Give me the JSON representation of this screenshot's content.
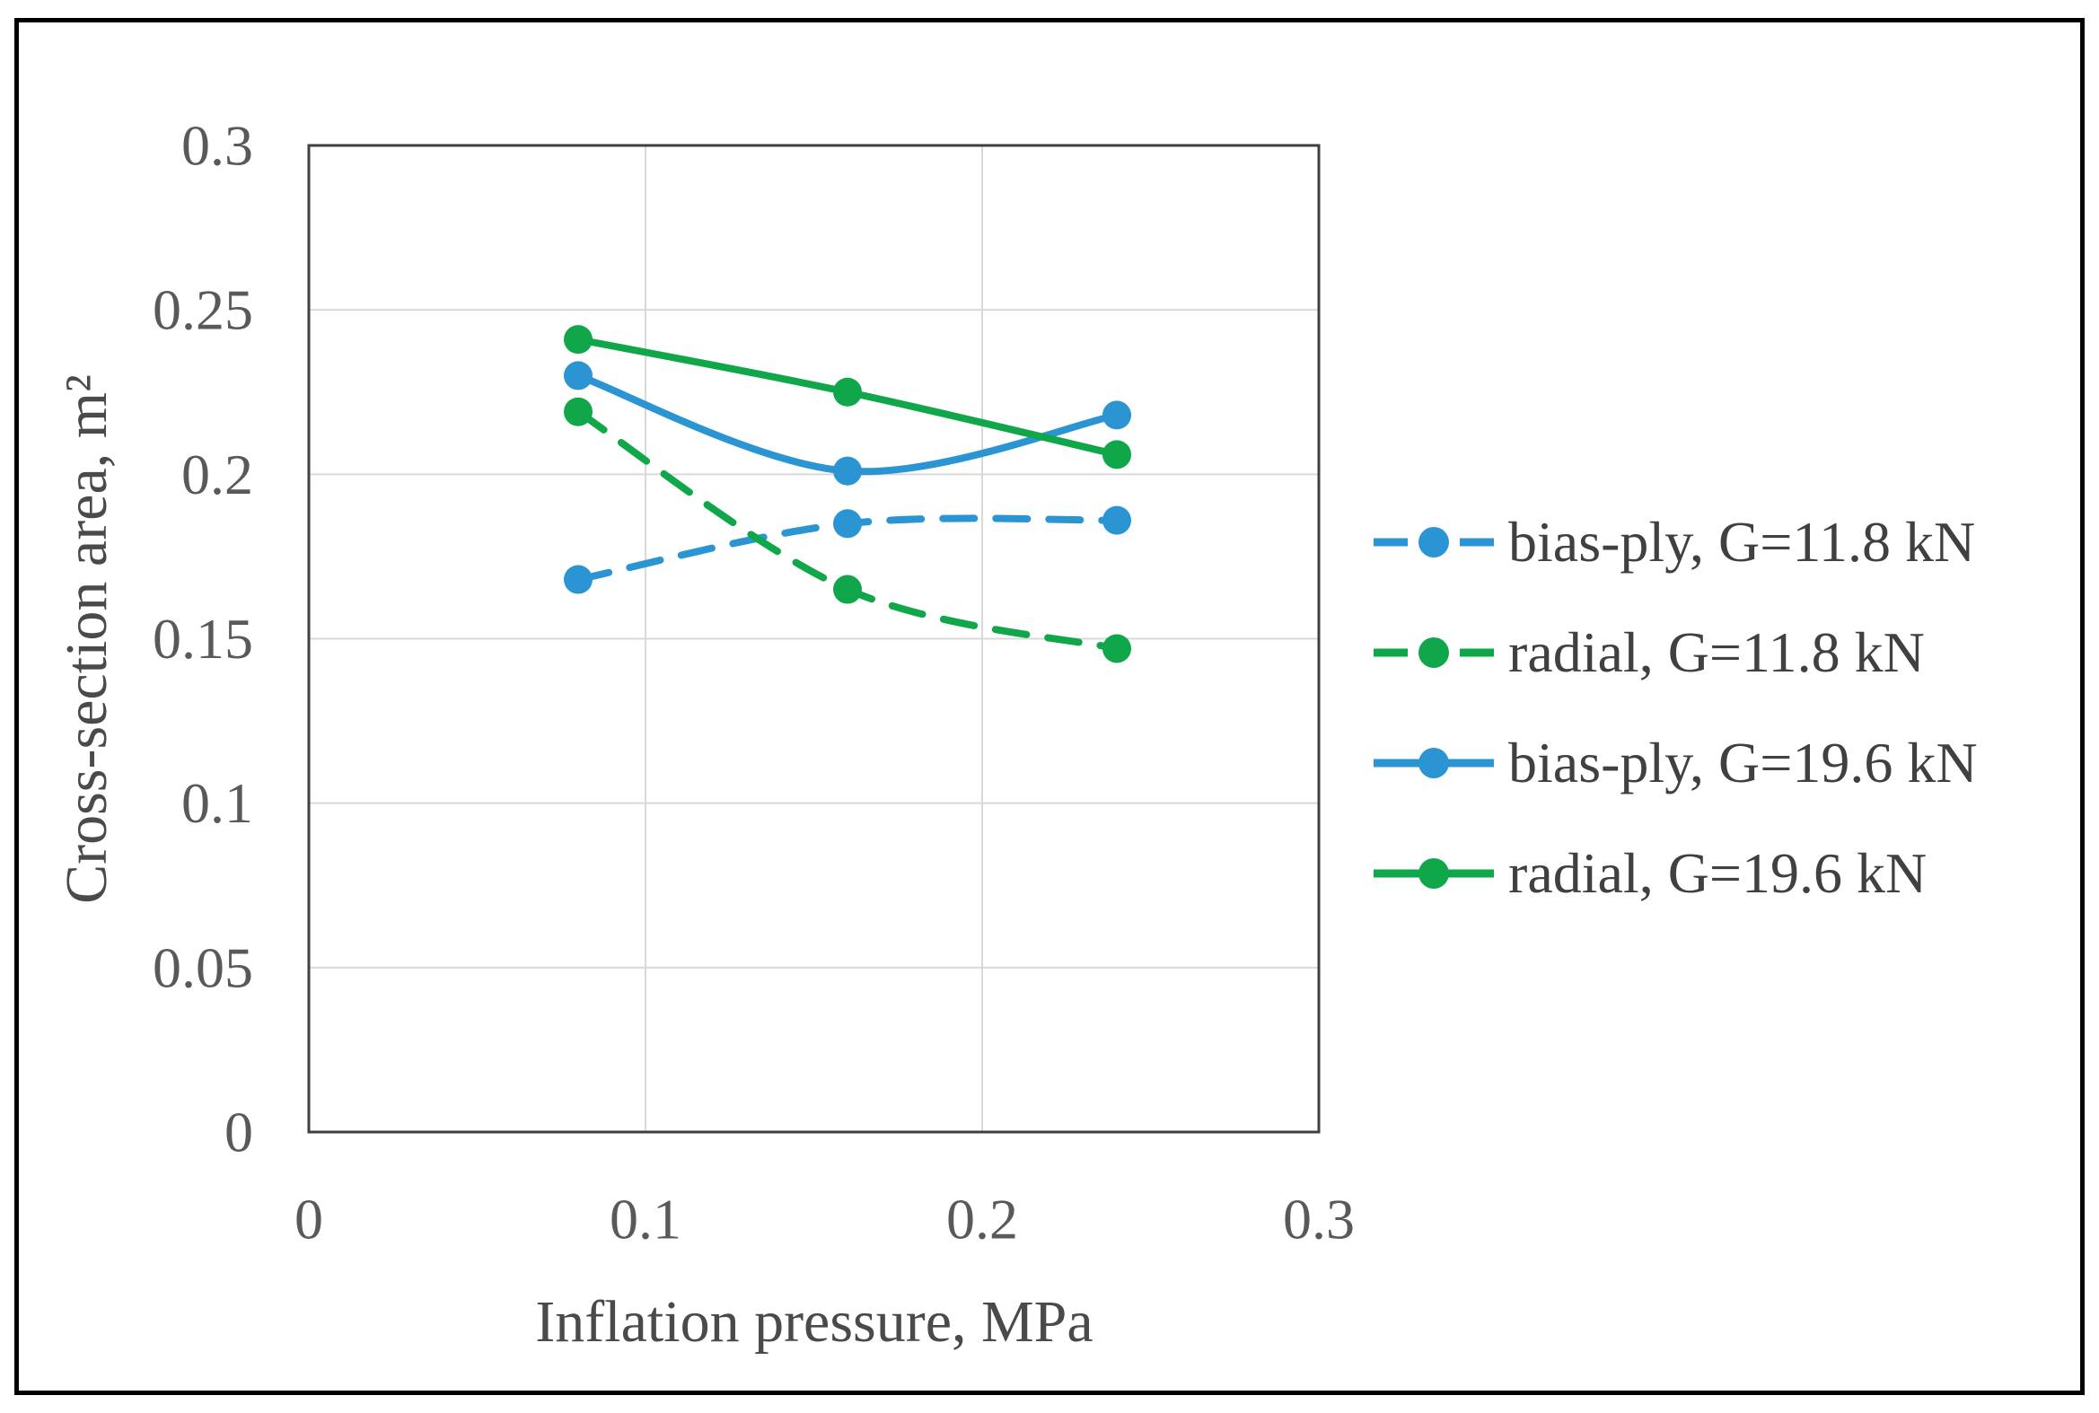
{
  "figure": {
    "background": "#FFFFFF",
    "frame_color": "#000000"
  },
  "chart_data": {
    "type": "line",
    "title": "",
    "xlabel": "Inflation pressure, MPa",
    "ylabel": "Cross-section area, m²",
    "xlim": [
      0,
      0.3
    ],
    "ylim": [
      0,
      0.3
    ],
    "x_tick_labels": [
      "0",
      "0.1",
      "0.2",
      "0.3"
    ],
    "x_tick_values": [
      0,
      0.1,
      0.2,
      0.3
    ],
    "y_tick_labels": [
      "0",
      "0.05",
      "0.1",
      "0.15",
      "0.2",
      "0.25",
      "0.3"
    ],
    "y_tick_values": [
      0,
      0.05,
      0.1,
      0.15,
      0.2,
      0.25,
      0.3
    ],
    "grid": true,
    "legend_position": "right",
    "x": [
      0.08,
      0.16,
      0.24
    ],
    "series": [
      {
        "name": "bias-ply, G=11.8 kN",
        "color": "#2B95D3",
        "style": "dashed",
        "marker": "circle",
        "values": [
          0.168,
          0.185,
          0.186
        ]
      },
      {
        "name": "radial, G=11.8 kN",
        "color": "#10A74A",
        "style": "dashed",
        "marker": "circle",
        "values": [
          0.219,
          0.165,
          0.147
        ]
      },
      {
        "name": "bias-ply, G=19.6 kN",
        "color": "#2B95D3",
        "style": "solid",
        "marker": "circle",
        "values": [
          0.23,
          0.201,
          0.218
        ]
      },
      {
        "name": "radial, G=19.6 kN",
        "color": "#10A74A",
        "style": "solid",
        "marker": "circle",
        "values": [
          0.241,
          0.225,
          0.206
        ]
      }
    ],
    "palette": {
      "gridline": "#D9D9D9",
      "plot_border": "#3F3F3F",
      "tick_text": "#595959",
      "axis_title_text": "#4A4A4A",
      "legend_text": "#404040"
    }
  }
}
